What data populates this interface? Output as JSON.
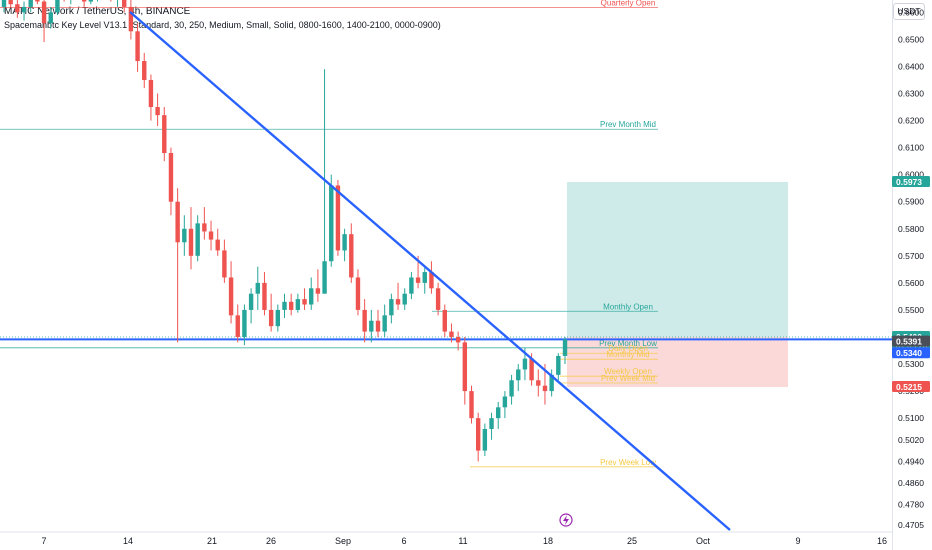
{
  "header": {
    "title": "MATIC Network / TetherUS, 4h, BINANCE",
    "indicator": "Spacemanbtc Key Level V13.1 (Standard, 30, 250, Medium, Small, Solid, 0800-1600, 1400-2100, 0000-0900)"
  },
  "currency_button": "USDT",
  "colors": {
    "up": "#26a69a",
    "down": "#ef5350",
    "trend": "#2962ff",
    "target": "#26a69a",
    "stop": "#ef5350"
  },
  "chart_data": {
    "type": "candlestick",
    "y_axis_ticks": [
      "0.6600",
      "0.6500",
      "0.6400",
      "0.6300",
      "0.6200",
      "0.6100",
      "0.6000",
      "0.5900",
      "0.5800",
      "0.5700",
      "0.5600",
      "0.5500",
      "0.5400",
      "0.5300",
      "0.5200",
      "0.5100",
      "0.5020",
      "0.4940",
      "0.4860",
      "0.4780",
      "0.4705"
    ],
    "x_axis_ticks": [
      "7",
      "14",
      "21",
      "26",
      "Sep",
      "6",
      "11",
      "18",
      "25",
      "Oct",
      "9",
      "16"
    ],
    "ylim": [
      0.4705,
      0.669
    ],
    "key_levels": [
      {
        "label": "Quarterly Open",
        "price": 0.6618,
        "color": "#ef5350"
      },
      {
        "label": "Prev Month Mid",
        "price": 0.6168,
        "color": "#26a69a"
      },
      {
        "label": "Monthly Open",
        "price": 0.5495,
        "color": "#26a69a"
      },
      {
        "label": "Prev Month Low",
        "price": 0.536,
        "color": "#26a69a"
      },
      {
        "label": "Daily Open",
        "price": 0.534,
        "color": "#f5c842"
      },
      {
        "label": "Monthly Mid",
        "price": 0.5318,
        "color": "#f5c842"
      },
      {
        "label": "Weekly Open",
        "price": 0.5255,
        "color": "#f5c842"
      },
      {
        "label": "Prev Week Mid",
        "price": 0.523,
        "color": "#f5c842"
      },
      {
        "label": "Prev Week Low",
        "price": 0.492,
        "color": "#f5c842"
      }
    ],
    "position": {
      "target": 0.5973,
      "entry": 0.54,
      "stop": 0.5215
    },
    "price_labels": [
      {
        "text": "0.5973",
        "price": 0.5973,
        "color": "#26a69a"
      },
      {
        "text": "0.5400",
        "sub": "01:05:26",
        "price": 0.54,
        "color": "#26a69a"
      },
      {
        "text": "0.5391",
        "price": 0.5383,
        "color": "#4a4e59"
      },
      {
        "text": "0.5340",
        "price": 0.534,
        "color": "#2962ff"
      },
      {
        "text": "0.5215",
        "price": 0.5215,
        "color": "#ef5350"
      }
    ],
    "horizontal_line_price": 0.5391,
    "trendline": {
      "start": [
        "Aug 15",
        0.664
      ],
      "end": [
        "Oct 1",
        0.4705
      ]
    },
    "candles": [
      [
        0.662,
        0.669,
        0.66,
        0.665
      ],
      [
        0.665,
        0.669,
        0.662,
        0.663
      ],
      [
        0.663,
        0.666,
        0.658,
        0.66
      ],
      [
        0.66,
        0.664,
        0.657,
        0.662
      ],
      [
        0.662,
        0.668,
        0.66,
        0.666
      ],
      [
        0.666,
        0.669,
        0.663,
        0.664
      ],
      [
        0.664,
        0.665,
        0.649,
        0.656
      ],
      [
        0.656,
        0.662,
        0.654,
        0.66
      ],
      [
        0.66,
        0.669,
        0.659,
        0.667
      ],
      [
        0.667,
        0.669,
        0.664,
        0.666
      ],
      [
        0.666,
        0.669,
        0.663,
        0.668
      ],
      [
        0.668,
        0.669,
        0.665,
        0.666
      ],
      [
        0.666,
        0.669,
        0.662,
        0.664
      ],
      [
        0.664,
        0.669,
        0.663,
        0.667
      ],
      [
        0.667,
        0.669,
        0.664,
        0.668
      ],
      [
        0.668,
        0.669,
        0.665,
        0.667
      ],
      [
        0.667,
        0.669,
        0.664,
        0.666
      ],
      [
        0.666,
        0.669,
        0.662,
        0.668
      ],
      [
        0.668,
        0.669,
        0.66,
        0.662
      ],
      [
        0.662,
        0.665,
        0.65,
        0.653
      ],
      [
        0.653,
        0.656,
        0.638,
        0.642
      ],
      [
        0.642,
        0.645,
        0.632,
        0.635
      ],
      [
        0.635,
        0.637,
        0.62,
        0.625
      ],
      [
        0.625,
        0.63,
        0.618,
        0.622
      ],
      [
        0.622,
        0.625,
        0.605,
        0.608
      ],
      [
        0.608,
        0.61,
        0.585,
        0.59
      ],
      [
        0.59,
        0.595,
        0.538,
        0.575
      ],
      [
        0.575,
        0.585,
        0.57,
        0.58
      ],
      [
        0.58,
        0.588,
        0.565,
        0.57
      ],
      [
        0.57,
        0.585,
        0.568,
        0.582
      ],
      [
        0.582,
        0.588,
        0.576,
        0.579
      ],
      [
        0.579,
        0.583,
        0.572,
        0.576
      ],
      [
        0.576,
        0.58,
        0.57,
        0.572
      ],
      [
        0.572,
        0.576,
        0.56,
        0.562
      ],
      [
        0.562,
        0.568,
        0.545,
        0.548
      ],
      [
        0.548,
        0.552,
        0.538,
        0.54
      ],
      [
        0.54,
        0.552,
        0.537,
        0.55
      ],
      [
        0.55,
        0.558,
        0.545,
        0.556
      ],
      [
        0.556,
        0.566,
        0.55,
        0.56
      ],
      [
        0.56,
        0.564,
        0.548,
        0.55
      ],
      [
        0.55,
        0.556,
        0.542,
        0.544
      ],
      [
        0.544,
        0.552,
        0.542,
        0.55
      ],
      [
        0.55,
        0.556,
        0.547,
        0.553
      ],
      [
        0.553,
        0.556,
        0.548,
        0.55
      ],
      [
        0.55,
        0.556,
        0.549,
        0.554
      ],
      [
        0.554,
        0.558,
        0.55,
        0.552
      ],
      [
        0.552,
        0.562,
        0.55,
        0.558
      ],
      [
        0.558,
        0.565,
        0.553,
        0.556
      ],
      [
        0.556,
        0.639,
        0.556,
        0.568
      ],
      [
        0.568,
        0.6,
        0.566,
        0.596
      ],
      [
        0.596,
        0.598,
        0.57,
        0.572
      ],
      [
        0.572,
        0.58,
        0.568,
        0.578
      ],
      [
        0.578,
        0.582,
        0.56,
        0.562
      ],
      [
        0.562,
        0.565,
        0.548,
        0.55
      ],
      [
        0.55,
        0.554,
        0.538,
        0.542
      ],
      [
        0.542,
        0.55,
        0.538,
        0.546
      ],
      [
        0.546,
        0.55,
        0.54,
        0.542
      ],
      [
        0.542,
        0.552,
        0.54,
        0.548
      ],
      [
        0.548,
        0.556,
        0.545,
        0.554
      ],
      [
        0.554,
        0.56,
        0.55,
        0.552
      ],
      [
        0.552,
        0.558,
        0.55,
        0.556
      ],
      [
        0.556,
        0.564,
        0.554,
        0.562
      ],
      [
        0.562,
        0.57,
        0.558,
        0.56
      ],
      [
        0.56,
        0.566,
        0.556,
        0.564
      ],
      [
        0.564,
        0.568,
        0.556,
        0.558
      ],
      [
        0.558,
        0.56,
        0.548,
        0.55
      ],
      [
        0.55,
        0.552,
        0.54,
        0.542
      ],
      [
        0.542,
        0.545,
        0.538,
        0.54
      ],
      [
        0.54,
        0.542,
        0.535,
        0.538
      ],
      [
        0.538,
        0.54,
        0.515,
        0.52
      ],
      [
        0.52,
        0.522,
        0.508,
        0.51
      ],
      [
        0.51,
        0.512,
        0.494,
        0.498
      ],
      [
        0.498,
        0.508,
        0.496,
        0.506
      ],
      [
        0.506,
        0.512,
        0.502,
        0.51
      ],
      [
        0.51,
        0.516,
        0.506,
        0.514
      ],
      [
        0.514,
        0.52,
        0.51,
        0.518
      ],
      [
        0.518,
        0.526,
        0.515,
        0.524
      ],
      [
        0.524,
        0.53,
        0.52,
        0.528
      ],
      [
        0.528,
        0.536,
        0.524,
        0.532
      ],
      [
        0.532,
        0.534,
        0.522,
        0.524
      ],
      [
        0.524,
        0.528,
        0.518,
        0.522
      ],
      [
        0.522,
        0.53,
        0.515,
        0.52
      ],
      [
        0.52,
        0.528,
        0.518,
        0.526
      ],
      [
        0.526,
        0.534,
        0.524,
        0.533
      ],
      [
        0.533,
        0.54,
        0.53,
        0.5391
      ]
    ]
  }
}
